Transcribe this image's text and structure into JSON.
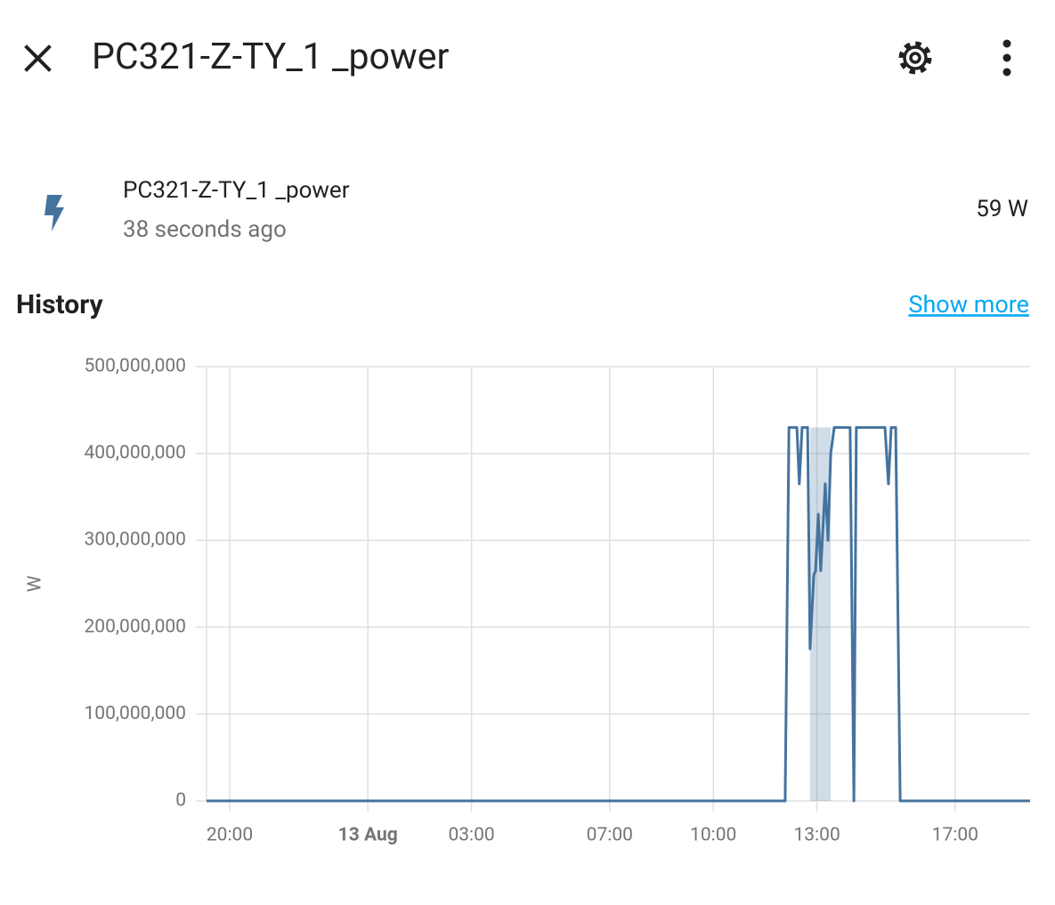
{
  "header": {
    "title": "PC321-Z-TY_1 _power"
  },
  "entity": {
    "name": "PC321-Z-TY_1 _power",
    "last_changed": "38 seconds ago",
    "state": "59 W"
  },
  "history": {
    "title": "History",
    "link": "Show more"
  },
  "chart_data": {
    "type": "line",
    "y_label": "W",
    "color": "#44739e",
    "grid": true,
    "x": [
      19.33,
      36.08,
      36.19,
      36.42,
      36.49,
      36.57,
      36.73,
      36.8,
      36.91,
      36.96,
      37.04,
      37.11,
      37.24,
      37.32,
      37.4,
      37.5,
      37.96,
      38.07,
      38.14,
      38.97,
      39.07,
      39.15,
      39.28,
      39.41,
      43.17
    ],
    "values": [
      0,
      0,
      430000000,
      430000000,
      365000000,
      430000000,
      430000000,
      175000000,
      260000000,
      265000000,
      330000000,
      265000000,
      365000000,
      300000000,
      400000000,
      430000000,
      430000000,
      0,
      430000000,
      430000000,
      365000000,
      430000000,
      430000000,
      0,
      0
    ],
    "band": {
      "x": [
        36.8,
        37.4
      ],
      "lower": [
        0,
        0
      ],
      "upper": [
        430000000,
        430000000
      ]
    },
    "xlim": [
      19.33,
      43.17
    ],
    "xticks": [
      {
        "value": 20,
        "label": "20:00"
      },
      {
        "value": 24,
        "label": "13 Aug"
      },
      {
        "value": 27,
        "label": "03:00"
      },
      {
        "value": 31,
        "label": "07:00"
      },
      {
        "value": 34,
        "label": "10:00"
      },
      {
        "value": 37,
        "label": "13:00"
      },
      {
        "value": 41,
        "label": "17:00"
      }
    ],
    "ylim": [
      0,
      500000000
    ],
    "yticks": [
      0,
      {
        "value": 100000000,
        "label": "100,000,000"
      },
      {
        "value": 200000000,
        "label": "200,000,000"
      },
      {
        "value": 300000000,
        "label": "300,000,000"
      },
      {
        "value": 400000000,
        "label": "400,000,000"
      },
      {
        "value": 500000000,
        "label": "500,000,000"
      }
    ]
  }
}
